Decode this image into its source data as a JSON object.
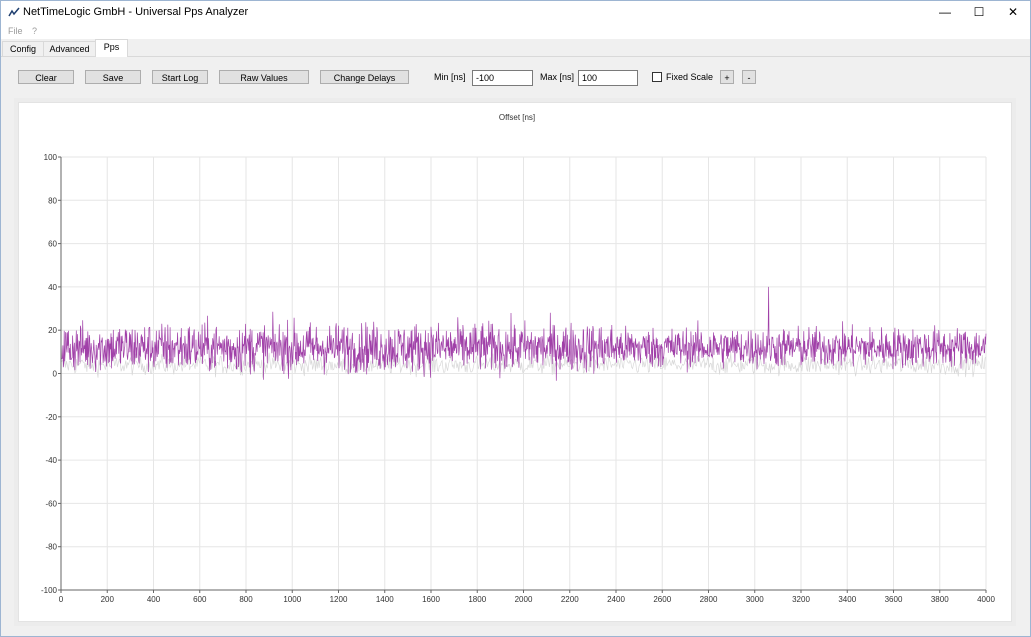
{
  "window": {
    "title": "NetTimeLogic GmbH - Universal Pps Analyzer",
    "minimize_glyph": "—",
    "maximize_glyph": "☐",
    "close_glyph": "✕"
  },
  "menu": {
    "file": "File",
    "help": "?"
  },
  "tabs": [
    {
      "label": "Config",
      "active": false
    },
    {
      "label": "Advanced",
      "active": false
    },
    {
      "label": "Pps",
      "active": true
    }
  ],
  "toolbar": {
    "clear": "Clear",
    "save": "Save",
    "start_log": "Start Log",
    "raw_values": "Raw Values",
    "change_delays": "Change Delays",
    "min_label": "Min [ns]",
    "min_value": "-100",
    "max_label": "Max [ns]",
    "max_value": "100",
    "fixed_scale_label": "Fixed Scale",
    "fixed_scale_checked": false,
    "plus": "+",
    "minus": "-"
  },
  "chart_data": {
    "type": "line",
    "title": "Offset [ns]",
    "xlim": [
      0,
      4000
    ],
    "ylim": [
      -100,
      100
    ],
    "x_ticks": [
      0,
      200,
      400,
      600,
      800,
      1000,
      1200,
      1400,
      1600,
      1800,
      2000,
      2200,
      2400,
      2600,
      2800,
      3000,
      3200,
      3400,
      3600,
      3800,
      4000
    ],
    "y_ticks": [
      100,
      80,
      60,
      40,
      20,
      0,
      -20,
      -40,
      -60,
      -80,
      -100
    ],
    "grid": true,
    "series": [
      {
        "color": "#a040a8",
        "values_summary": {
          "mean": 12,
          "min": -13,
          "max": 40,
          "spike_at_x": 3060
        }
      },
      {
        "color": "#d8d8d8",
        "values_summary": {
          "mean": 4,
          "min": -5,
          "max": 10
        }
      }
    ]
  }
}
